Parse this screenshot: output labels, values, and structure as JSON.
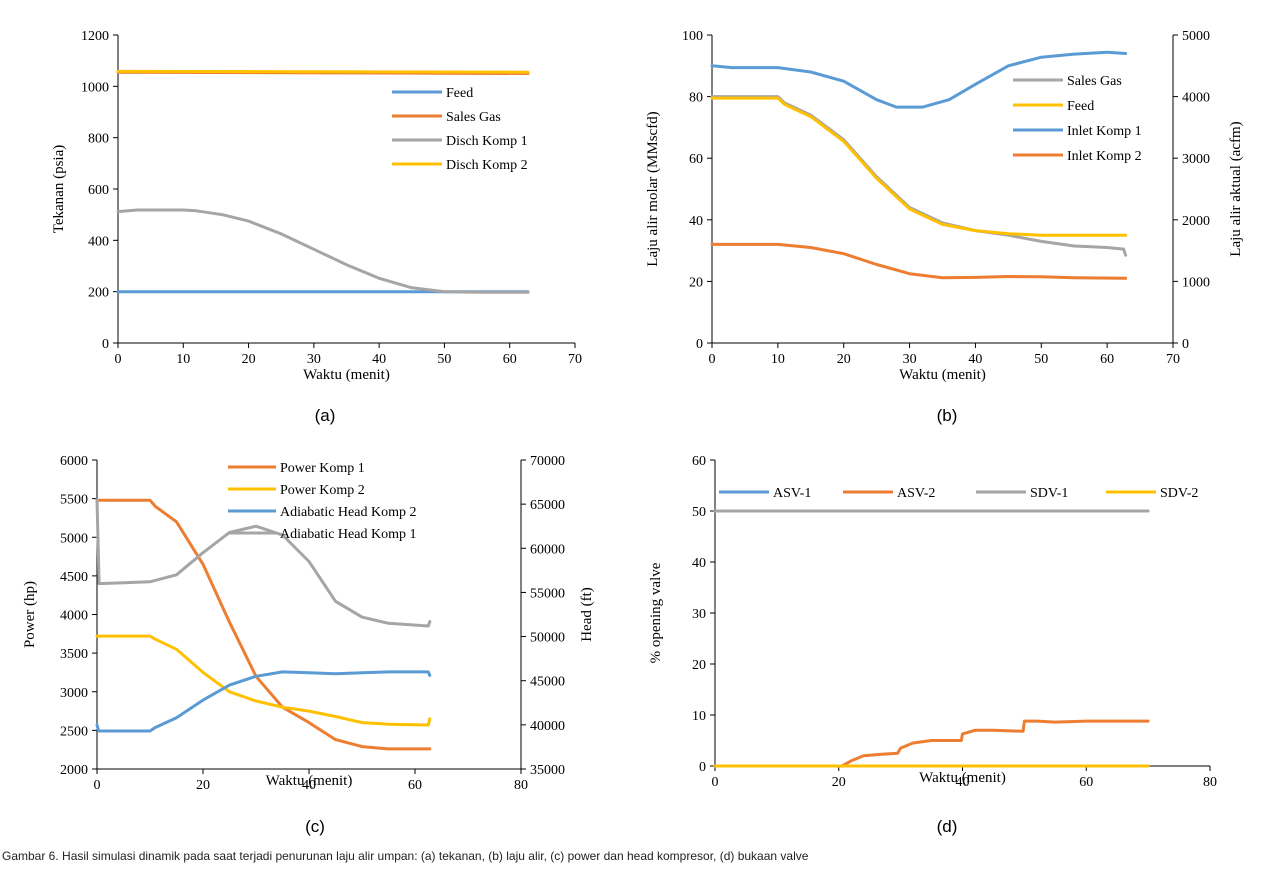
{
  "caption": "Gambar 6. Hasil simulasi dinamik pada saat terjadi penurunan laju alir umpan: (a) tekanan, (b) laju alir, (c) power dan head kompresor, (d) bukaan valve",
  "colors": {
    "blue": "#5B9BD5",
    "orange": "#ED7D31",
    "gray": "#A5A5A5",
    "yellow": "#FFC000"
  },
  "chart_data": [
    {
      "id": "a",
      "type": "line",
      "panel_label": "(a)",
      "xlabel": "Waktu (menit)",
      "ylabel": "Tekanan (psia)",
      "xlim": [
        0,
        70
      ],
      "ylim": [
        0,
        1200
      ],
      "xticks": [
        0,
        10,
        20,
        30,
        40,
        50,
        60,
        70
      ],
      "yticks": [
        0,
        200,
        400,
        600,
        800,
        1000,
        1200
      ],
      "legend": "right-center",
      "series": [
        {
          "name": "Feed",
          "color": "#5B9BD5",
          "points": [
            [
              0,
              200
            ],
            [
              62.8,
              200
            ]
          ]
        },
        {
          "name": "Sales Gas",
          "color": "#ED7D31",
          "points": [
            [
              0,
              1055
            ],
            [
              62.8,
              1050
            ]
          ]
        },
        {
          "name": "Disch Komp 1",
          "color": "#A5A5A5",
          "points": [
            [
              0,
              512
            ],
            [
              3,
              518
            ],
            [
              10,
              518
            ],
            [
              12,
              515
            ],
            [
              16,
              500
            ],
            [
              20,
              475
            ],
            [
              25,
              425
            ],
            [
              30,
              365
            ],
            [
              35,
              305
            ],
            [
              40,
              252
            ],
            [
              45,
              215
            ],
            [
              50,
              200
            ],
            [
              55,
              198
            ],
            [
              62.8,
              198
            ]
          ]
        },
        {
          "name": "Disch Komp 2",
          "color": "#FFC000",
          "points": [
            [
              0,
              1058
            ],
            [
              62.8,
              1055
            ]
          ]
        }
      ]
    },
    {
      "id": "b",
      "type": "line",
      "panel_label": "(b)",
      "xlabel": "Waktu (menit)",
      "ylabel": "Laju alir molar (MMscfd)",
      "y2label": "Laju alir aktual (acfm)",
      "xlim": [
        0,
        70
      ],
      "ylim": [
        0,
        100
      ],
      "y2lim": [
        0,
        5000
      ],
      "xticks": [
        0,
        10,
        20,
        30,
        40,
        50,
        60,
        70
      ],
      "yticks": [
        0,
        20,
        40,
        60,
        80,
        100
      ],
      "y2ticks": [
        0,
        1000,
        2000,
        3000,
        4000,
        5000
      ],
      "legend": "right-top",
      "series": [
        {
          "name": "Sales Gas",
          "axis": "left",
          "color": "#A5A5A5",
          "points": [
            [
              0,
              80
            ],
            [
              10,
              80
            ],
            [
              11,
              78
            ],
            [
              15,
              74
            ],
            [
              20,
              66
            ],
            [
              25,
              54
            ],
            [
              30,
              44
            ],
            [
              35,
              39
            ],
            [
              40,
              36.5
            ],
            [
              45,
              35
            ],
            [
              50,
              33
            ],
            [
              55,
              31.5
            ],
            [
              60,
              31
            ],
            [
              62.5,
              30.5
            ],
            [
              62.8,
              28.5
            ]
          ]
        },
        {
          "name": "Feed",
          "axis": "left",
          "color": "#FFC000",
          "points": [
            [
              0,
              79.5
            ],
            [
              10,
              79.5
            ],
            [
              11,
              77.5
            ],
            [
              15,
              73.5
            ],
            [
              20,
              65.5
            ],
            [
              25,
              53.5
            ],
            [
              30,
              43.5
            ],
            [
              35,
              38.5
            ],
            [
              40,
              36.5
            ],
            [
              45,
              35.5
            ],
            [
              50,
              35
            ],
            [
              55,
              35
            ],
            [
              62.8,
              35
            ]
          ]
        },
        {
          "name": "Inlet Komp 1",
          "axis": "right",
          "color": "#5B9BD5",
          "points": [
            [
              0,
              4500
            ],
            [
              3,
              4470
            ],
            [
              10,
              4470
            ],
            [
              15,
              4400
            ],
            [
              20,
              4250
            ],
            [
              25,
              3950
            ],
            [
              28,
              3830
            ],
            [
              32,
              3830
            ],
            [
              36,
              3950
            ],
            [
              40,
              4200
            ],
            [
              45,
              4500
            ],
            [
              50,
              4640
            ],
            [
              55,
              4690
            ],
            [
              60,
              4720
            ],
            [
              62.8,
              4700
            ]
          ]
        },
        {
          "name": "Inlet Komp 2",
          "axis": "left",
          "color": "#ED7D31",
          "points": [
            [
              0,
              32
            ],
            [
              10,
              32
            ],
            [
              15,
              31
            ],
            [
              20,
              29
            ],
            [
              25,
              25.5
            ],
            [
              30,
              22.5
            ],
            [
              35,
              21.2
            ],
            [
              40,
              21.3
            ],
            [
              45,
              21.6
            ],
            [
              50,
              21.5
            ],
            [
              55,
              21.2
            ],
            [
              62.8,
              21
            ]
          ]
        }
      ]
    },
    {
      "id": "c",
      "type": "line",
      "panel_label": "(c)",
      "xlabel": "Waktu (menit)",
      "ylabel": "Power (hp)",
      "y2label": "Head (ft)",
      "xlim": [
        0,
        80
      ],
      "ylim": [
        2000,
        6000
      ],
      "y2lim": [
        35000,
        70000
      ],
      "xticks": [
        0,
        20,
        40,
        60,
        80
      ],
      "yticks": [
        2000,
        2500,
        3000,
        3500,
        4000,
        4500,
        5000,
        5500,
        6000
      ],
      "y2ticks": [
        35000,
        40000,
        45000,
        50000,
        55000,
        60000,
        65000,
        70000
      ],
      "legend": "right-top",
      "series": [
        {
          "name": "Power Komp 1",
          "axis": "left",
          "color": "#ED7D31",
          "points": [
            [
              0,
              5480
            ],
            [
              10,
              5480
            ],
            [
              11,
              5400
            ],
            [
              15,
              5200
            ],
            [
              20,
              4650
            ],
            [
              25,
              3900
            ],
            [
              30,
              3200
            ],
            [
              35,
              2800
            ],
            [
              40,
              2600
            ],
            [
              45,
              2380
            ],
            [
              50,
              2290
            ],
            [
              55,
              2260
            ],
            [
              62.8,
              2260
            ]
          ]
        },
        {
          "name": "Power Komp 2",
          "axis": "left",
          "color": "#FFC000",
          "points": [
            [
              0,
              3720
            ],
            [
              10,
              3720
            ],
            [
              11,
              3680
            ],
            [
              15,
              3550
            ],
            [
              20,
              3250
            ],
            [
              25,
              3000
            ],
            [
              30,
              2880
            ],
            [
              35,
              2800
            ],
            [
              40,
              2750
            ],
            [
              45,
              2680
            ],
            [
              50,
              2600
            ],
            [
              55,
              2580
            ],
            [
              62.5,
              2570
            ],
            [
              62.8,
              2650
            ]
          ]
        },
        {
          "name": "Adiabatic Head Komp 2",
          "axis": "right",
          "color": "#5B9BD5",
          "points": [
            [
              0,
              40000
            ],
            [
              0.3,
              39300
            ],
            [
              10,
              39300
            ],
            [
              11,
              39700
            ],
            [
              15,
              40800
            ],
            [
              20,
              42800
            ],
            [
              25,
              44500
            ],
            [
              30,
              45500
            ],
            [
              35,
              46000
            ],
            [
              40,
              45900
            ],
            [
              45,
              45800
            ],
            [
              50,
              45900
            ],
            [
              55,
              46000
            ],
            [
              62.5,
              46000
            ],
            [
              62.8,
              45600
            ]
          ]
        },
        {
          "name": "Adiabatic Head Komp 1",
          "axis": "right",
          "color": "#A5A5A5",
          "points": [
            [
              0,
              65500
            ],
            [
              0.4,
              56000
            ],
            [
              10,
              56200
            ],
            [
              15,
              57000
            ],
            [
              20,
              59500
            ],
            [
              25,
              61800
            ],
            [
              30,
              62500
            ],
            [
              35,
              61500
            ],
            [
              40,
              58500
            ],
            [
              45,
              54000
            ],
            [
              50,
              52200
            ],
            [
              55,
              51500
            ],
            [
              62.5,
              51200
            ],
            [
              62.8,
              51700
            ]
          ]
        }
      ]
    },
    {
      "id": "d",
      "type": "line",
      "panel_label": "(d)",
      "xlabel": "Waktu (menit)",
      "ylabel": "% opening valve",
      "xlim": [
        0,
        80
      ],
      "ylim": [
        0,
        60
      ],
      "xticks": [
        0,
        20,
        40,
        60,
        80
      ],
      "yticks": [
        0,
        10,
        20,
        30,
        40,
        50,
        60
      ],
      "legend": "top",
      "series": [
        {
          "name": "ASV-1",
          "color": "#5B9BD5",
          "points": [
            [
              0,
              0
            ],
            [
              70,
              0
            ]
          ]
        },
        {
          "name": "ASV-2",
          "color": "#ED7D31",
          "points": [
            [
              20.5,
              0
            ],
            [
              22,
              1
            ],
            [
              24,
              2
            ],
            [
              27,
              2.3
            ],
            [
              29.5,
              2.5
            ],
            [
              30,
              3.5
            ],
            [
              32,
              4.5
            ],
            [
              35,
              5
            ],
            [
              39.8,
              5
            ],
            [
              40,
              6.3
            ],
            [
              42,
              7
            ],
            [
              45,
              7
            ],
            [
              49.8,
              6.8
            ],
            [
              50,
              8.8
            ],
            [
              52,
              8.8
            ],
            [
              55,
              8.6
            ],
            [
              60,
              8.8
            ],
            [
              70,
              8.8
            ]
          ]
        },
        {
          "name": "SDV-1",
          "color": "#A5A5A5",
          "points": [
            [
              0,
              50
            ],
            [
              70,
              50
            ]
          ]
        },
        {
          "name": "SDV-2",
          "color": "#FFC000",
          "points": [
            [
              0,
              0
            ],
            [
              70,
              0
            ]
          ]
        }
      ]
    }
  ]
}
